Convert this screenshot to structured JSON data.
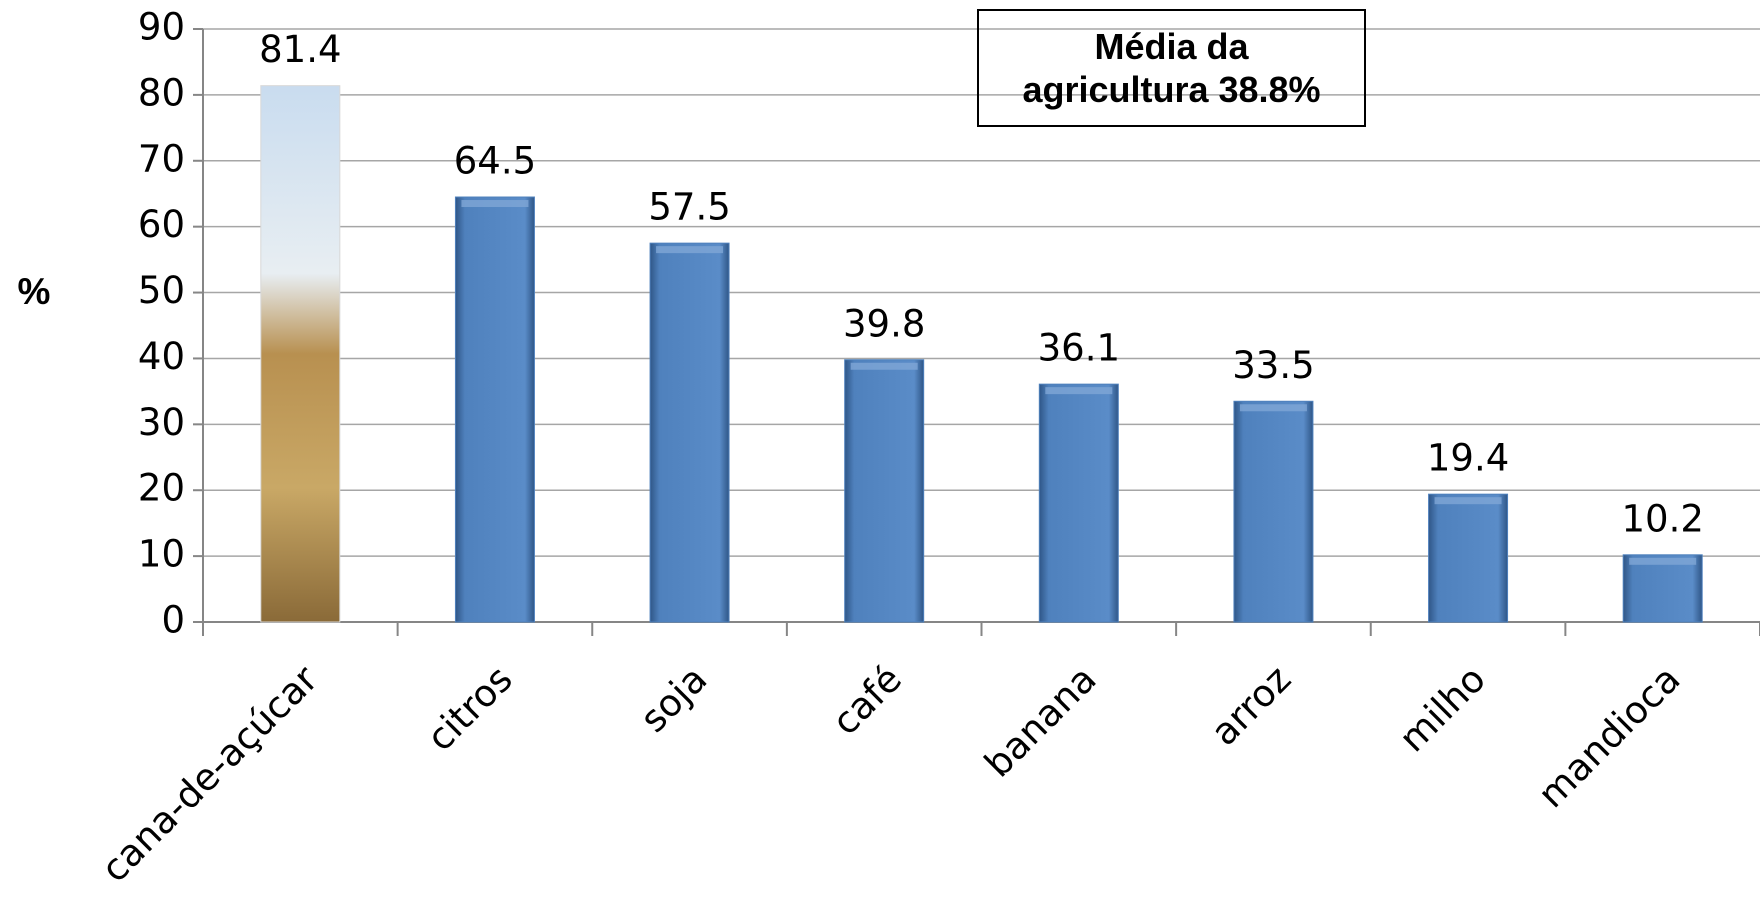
{
  "chart_data": {
    "type": "bar",
    "y_label": "%",
    "annotation": "Média da agricultura 38.8%",
    "categories": [
      "cana-de-açúcar",
      "citros",
      "soja",
      "café",
      "banana",
      "arroz",
      "milho",
      "mandioca"
    ],
    "values": [
      81.4,
      64.5,
      57.5,
      39.8,
      36.1,
      33.5,
      19.4,
      10.2
    ],
    "color": "#4f81bd",
    "ylim": [
      0,
      90
    ],
    "yticks": [
      0,
      10,
      20,
      30,
      40,
      50,
      60,
      70,
      80,
      90
    ],
    "grid": true
  }
}
